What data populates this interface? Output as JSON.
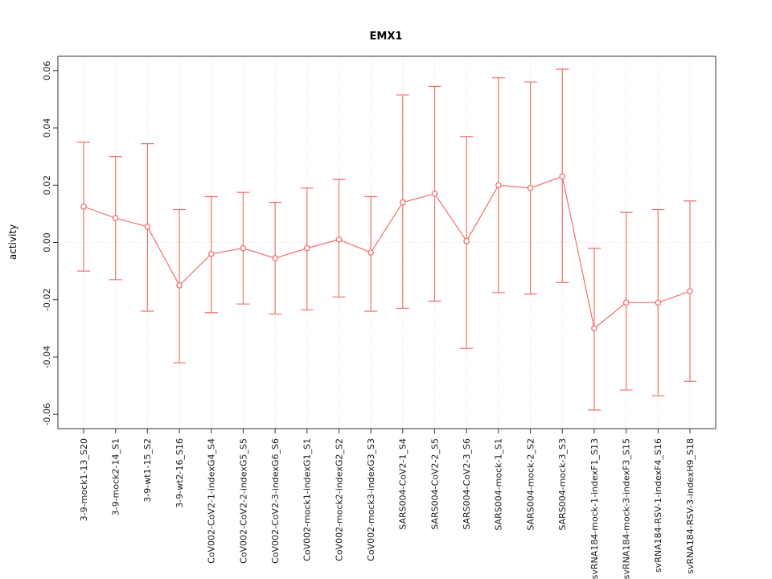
{
  "title": "EMX1",
  "colors": {
    "series": "#f0716e",
    "grid": "#d9d9d9",
    "zero_line": "#f2cfcf",
    "axis": "#333333",
    "text": "#1a1a1a"
  },
  "chart_data": {
    "type": "scatter",
    "title": "EMX1",
    "xlabel": "",
    "ylabel": "activity",
    "ylim": [
      -0.065,
      0.065
    ],
    "yticks": [
      -0.06,
      -0.04,
      -0.02,
      0,
      0.02,
      0.04,
      0.06
    ],
    "grid": "vertical dotted gridlines at each category; dotted horizontal line at y=0",
    "legend_position": "none",
    "error_bars": true,
    "categories": [
      "3-9-mock1-13_S20",
      "3-9-mock2-14_S1",
      "3-9-wt1-15_S2",
      "3-9-wt2-16_S16",
      "CoV002-CoV2-1-indexG4_S4",
      "CoV002-CoV2-2-indexG5_S5",
      "CoV002-CoV2-3-indexG6_S6",
      "CoV002-mock1-indexG1_S1",
      "CoV002-mock2-indexG2_S2",
      "CoV002-mock3-indexG3_S3",
      "SARS004-CoV2-1_S4",
      "SARS004-CoV2-2_S5",
      "SARS004-CoV2-3_S6",
      "SARS004-mock-1_S1",
      "SARS004-mock-2_S2",
      "SARS004-mock-3_S3",
      "svRNA184-mock-1-indexF1_S13",
      "svRNA184-mock-3-indexF3_S15",
      "svRNA184-RSV-1-indexF4_S16",
      "svRNA184-RSV-3-indexH9_S18"
    ],
    "series": [
      {
        "name": "activity",
        "values": [
          0.0125,
          0.0085,
          0.0055,
          -0.015,
          -0.004,
          -0.002,
          -0.0055,
          -0.002,
          0.001,
          -0.0035,
          0.014,
          0.017,
          0.0005,
          0.02,
          0.019,
          0.023,
          -0.03,
          -0.021,
          -0.021,
          -0.017
        ],
        "lower": [
          -0.01,
          -0.013,
          -0.024,
          -0.042,
          -0.0245,
          -0.0215,
          -0.025,
          -0.0235,
          -0.019,
          -0.024,
          -0.023,
          -0.0205,
          -0.037,
          -0.0175,
          -0.018,
          -0.014,
          -0.0585,
          -0.0515,
          -0.0535,
          -0.0485
        ],
        "upper": [
          0.035,
          0.03,
          0.0345,
          0.0115,
          0.016,
          0.0175,
          0.014,
          0.019,
          0.022,
          0.016,
          0.0515,
          0.0545,
          0.037,
          0.0575,
          0.056,
          0.0605,
          -0.002,
          0.0105,
          0.0115,
          0.0145
        ]
      }
    ]
  }
}
